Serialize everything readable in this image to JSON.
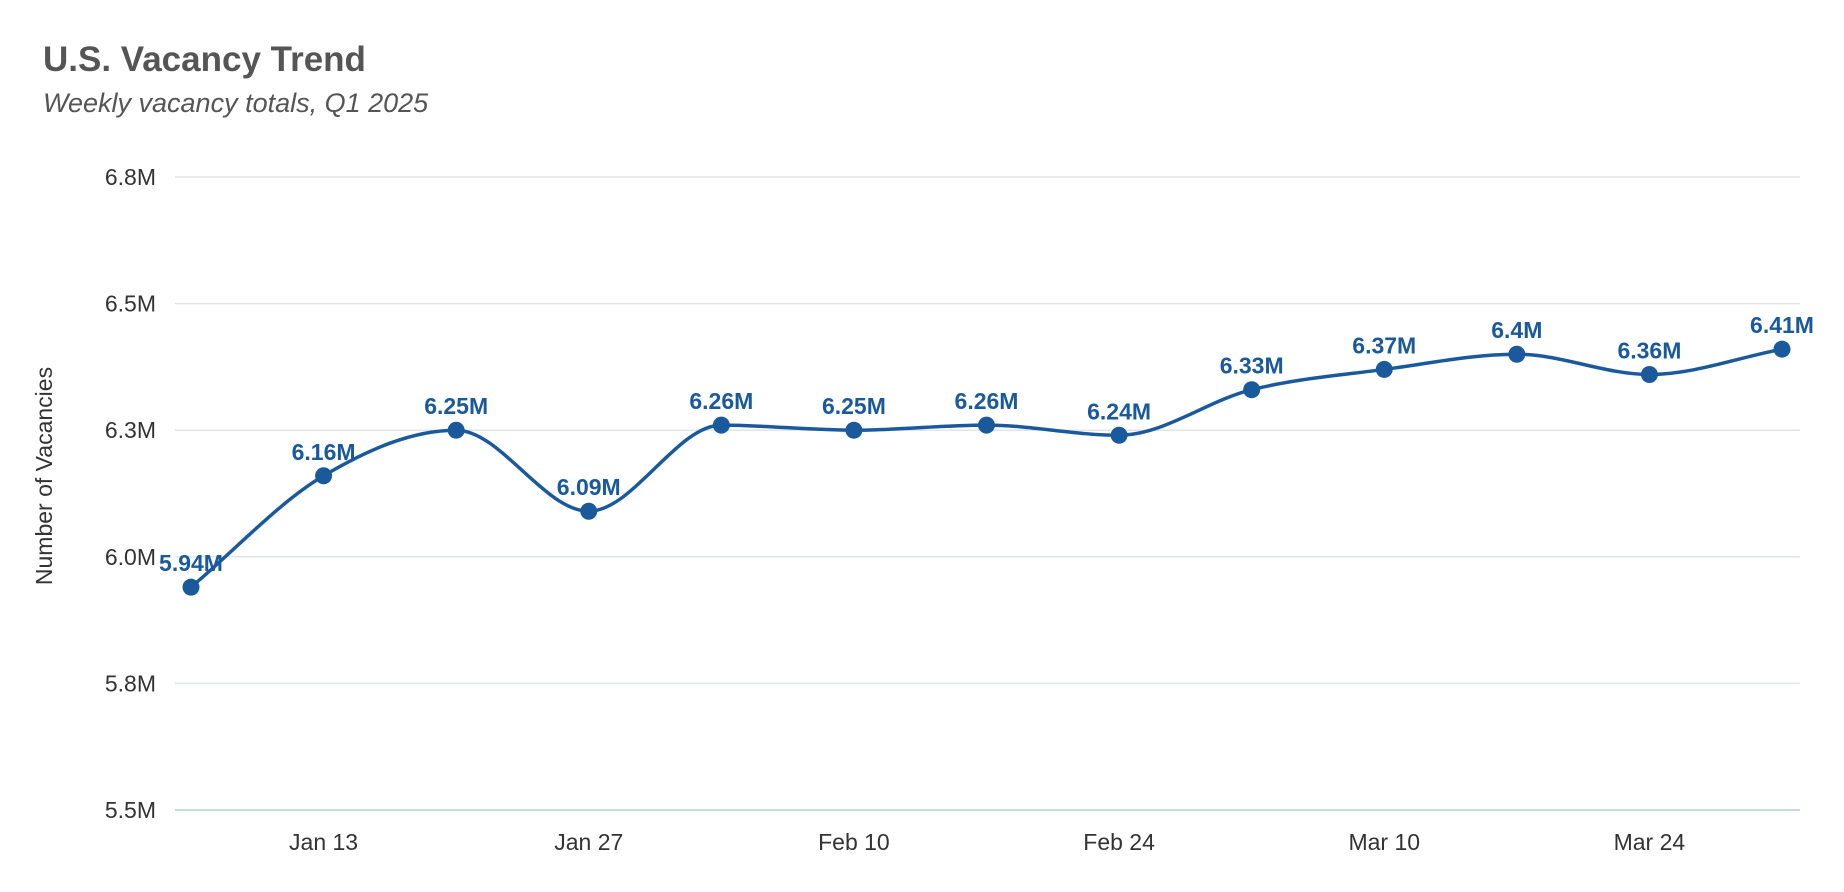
{
  "chart_data": {
    "type": "line",
    "title": "U.S. Vacancy Trend",
    "subtitle": "Weekly vacancy totals, Q1 2025",
    "xlabel": "",
    "ylabel": "Number of Vacancies",
    "x": [
      "2025-01-06",
      "2025-01-13",
      "2025-01-20",
      "2025-01-27",
      "2025-02-03",
      "2025-02-10",
      "2025-02-17",
      "2025-02-24",
      "2025-03-03",
      "2025-03-10",
      "2025-03-17",
      "2025-03-24",
      "2025-03-31"
    ],
    "x_tick_labels": [
      "Jan 13",
      "Jan 27",
      "Feb 10",
      "Feb 24",
      "Mar 10",
      "Mar 24"
    ],
    "x_tick_dates": [
      "2025-01-13",
      "2025-01-27",
      "2025-02-10",
      "2025-02-24",
      "2025-03-10",
      "2025-03-24"
    ],
    "y_ticks": [
      5.5,
      5.75,
      6.0,
      6.25,
      6.5,
      6.75
    ],
    "y_tick_labels": [
      "5.5M",
      "5.8M",
      "6.0M",
      "6.3M",
      "6.5M",
      "6.8M"
    ],
    "ylim": [
      5.5,
      6.75
    ],
    "y_unit": "M",
    "series": [
      {
        "values": [
          5.94,
          6.16,
          6.25,
          6.09,
          6.26,
          6.25,
          6.26,
          6.24,
          6.33,
          6.37,
          6.4,
          6.36,
          6.41
        ],
        "labels": [
          "5.94M",
          "6.16M",
          "6.25M",
          "6.09M",
          "6.26M",
          "6.25M",
          "6.26M",
          "6.24M",
          "6.33M",
          "6.37M",
          "6.4M",
          "6.36M",
          "6.41M"
        ],
        "color": "#1a5a9c"
      }
    ],
    "grid": true,
    "legend": "none",
    "curve": "smooth"
  },
  "colors": {
    "line": "#1a5a9c",
    "label": "#1a5a9c",
    "grid": "#e1e5ea",
    "baseline": "#c8d7e6",
    "text": "#333333",
    "title": "#555555"
  }
}
